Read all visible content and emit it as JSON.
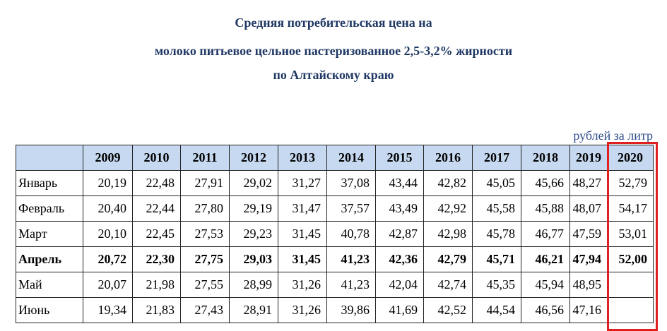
{
  "header": {
    "title": [
      "Средняя потребительская цена на",
      "молоко питьевое цельное пастеризованное 2,5-3,2% жирности",
      "по Алтайскому краю"
    ],
    "unit": "рублей за литр"
  },
  "table": {
    "columns": [
      "2009",
      "2010",
      "2011",
      "2012",
      "2013",
      "2014",
      "2015",
      "2016",
      "2017",
      "2018",
      "2019",
      "2020"
    ],
    "rows": [
      {
        "month": "Январь",
        "values": [
          "20,19",
          "22,48",
          "27,91",
          "29,02",
          "31,27",
          "37,08",
          "43,44",
          "42,82",
          "45,05",
          "45,66",
          "48,27",
          "52,79"
        ]
      },
      {
        "month": "Февраль",
        "values": [
          "20,40",
          "22,44",
          "27,80",
          "29,19",
          "31,47",
          "37,57",
          "43,49",
          "42,92",
          "45,58",
          "45,88",
          "48,07",
          "54,17"
        ]
      },
      {
        "month": "Март",
        "values": [
          "20,10",
          "22,45",
          "27,53",
          "29,23",
          "31,45",
          "40,78",
          "42,87",
          "42,98",
          "45,78",
          "46,77",
          "47,59",
          "53,01"
        ]
      },
      {
        "month": "Апрель",
        "bold": true,
        "values": [
          "20,72",
          "22,30",
          "27,75",
          "29,03",
          "31,45",
          "41,23",
          "42,36",
          "42,79",
          "45,71",
          "46,21",
          "47,94",
          "52,00"
        ]
      },
      {
        "month": "Май",
        "values": [
          "20,07",
          "21,98",
          "27,55",
          "28,99",
          "31,26",
          "41,23",
          "42,04",
          "42,74",
          "45,35",
          "45,94",
          "48,95"
        ]
      },
      {
        "month": "Июнь",
        "values": [
          "19,34",
          "21,83",
          "27,43",
          "28,91",
          "31,26",
          "39,86",
          "41,69",
          "42,52",
          "44,54",
          "46,56",
          "47,16"
        ]
      }
    ]
  }
}
